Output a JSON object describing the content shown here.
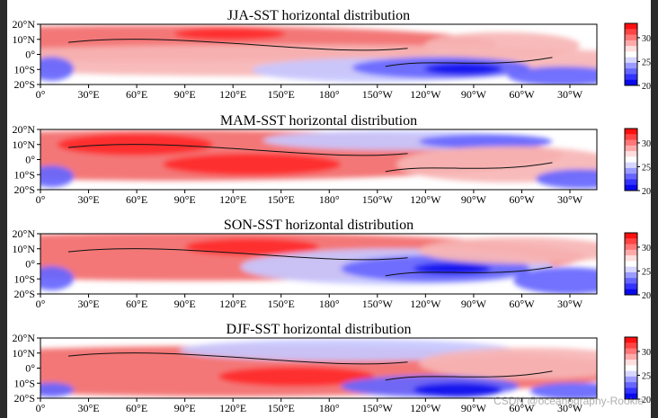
{
  "chart_data": [
    {
      "type": "heatmap",
      "title": "JJA-SST horizontal distribution",
      "x_ticks": [
        "0°",
        "30°E",
        "60°E",
        "90°E",
        "120°E",
        "150°E",
        "180°",
        "150°W",
        "120°W",
        "90°W",
        "60°W",
        "30°W"
      ],
      "y_ticks": [
        "20°N",
        "10°N",
        "0°",
        "10°S",
        "20°S"
      ],
      "colorbar_ticks": [
        "30",
        "25",
        "20"
      ],
      "colorbar_range": [
        20,
        33
      ],
      "colormap": "bwr"
    },
    {
      "type": "heatmap",
      "title": "MAM-SST horizontal distribution",
      "x_ticks": [
        "0°",
        "30°E",
        "60°E",
        "90°E",
        "120°E",
        "150°E",
        "180°",
        "150°W",
        "120°W",
        "90°W",
        "60°W",
        "30°W"
      ],
      "y_ticks": [
        "20°N",
        "10°N",
        "0°",
        "10°S",
        "20°S"
      ],
      "colorbar_ticks": [
        "30",
        "25",
        "20"
      ],
      "colorbar_range": [
        20,
        33
      ],
      "colormap": "bwr"
    },
    {
      "type": "heatmap",
      "title": "SON-SST horizontal distribution",
      "x_ticks": [
        "0°",
        "30°E",
        "60°E",
        "90°E",
        "120°E",
        "150°E",
        "180°",
        "150°W",
        "120°W",
        "90°W",
        "60°W",
        "30°W"
      ],
      "y_ticks": [
        "20°N",
        "10°N",
        "0°",
        "10°S",
        "20°S"
      ],
      "colorbar_ticks": [
        "30",
        "25",
        "20"
      ],
      "colorbar_range": [
        20,
        33
      ],
      "colormap": "bwr"
    },
    {
      "type": "heatmap",
      "title": "DJF-SST horizontal distribution",
      "x_ticks": [
        "0°",
        "30°E",
        "60°E",
        "90°E",
        "120°E",
        "150°E",
        "180°",
        "150°W",
        "120°W",
        "90°W",
        "60°W",
        "30°W"
      ],
      "y_ticks": [
        "20°N",
        "10°N",
        "0°",
        "10°S",
        "20°S"
      ],
      "colorbar_ticks": [
        "30",
        "25",
        "20"
      ],
      "colorbar_range": [
        20,
        33
      ],
      "colormap": "bwr"
    }
  ],
  "colors": {
    "warm_strong": "#ff2a2a",
    "warm_mid": "#f26b6b",
    "warm_light": "#f7b5b5",
    "neutral": "#ffffff",
    "cool_light": "#c7c8ff",
    "cool_mid": "#6666ff",
    "cool_strong": "#1111ee"
  },
  "watermark": "CSDN @oceanography-Rookie"
}
